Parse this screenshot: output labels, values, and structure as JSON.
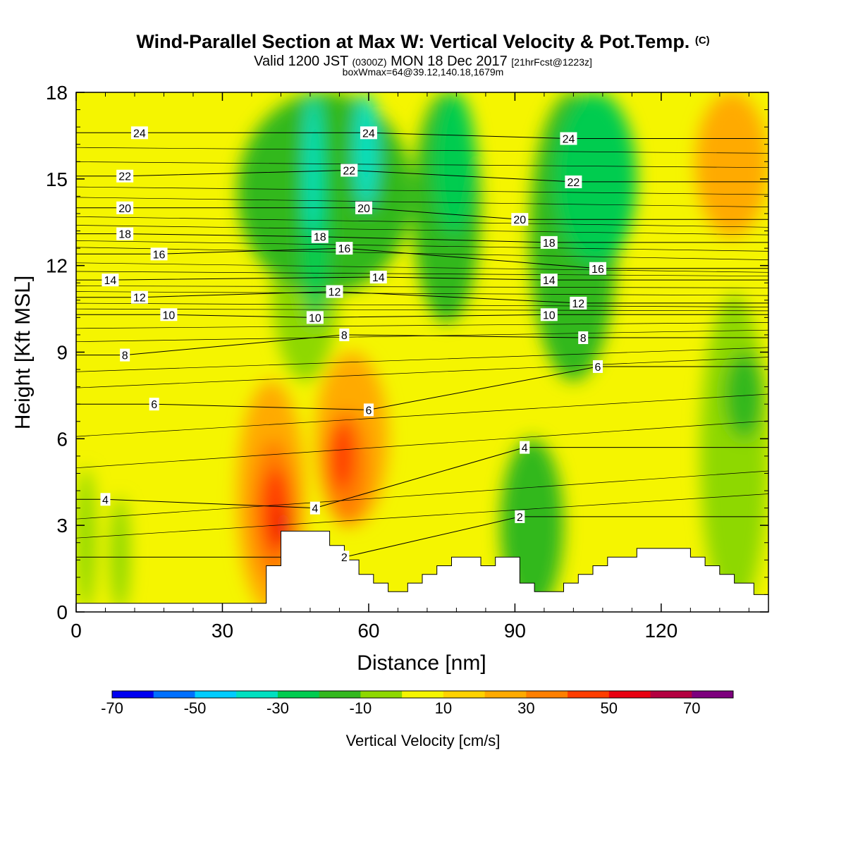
{
  "header": {
    "title_main": "Wind-Parallel Section at Max W: Vertical Velocity & Pot.Temp.",
    "title_copyright": "(C)",
    "subtitle_pre": "Valid 1200 JST",
    "subtitle_utc": "(0300Z)",
    "subtitle_mid": "MON 18 Dec 2017",
    "subtitle_fcst": "[21hrFcst@1223z]",
    "box_info": "boxWmax=64@39.12,140.18,1679m"
  },
  "chart_data": {
    "type": "heatmap",
    "xlabel": "Distance [nm]",
    "ylabel": "Height [Kft MSL]",
    "xlim": [
      0,
      142
    ],
    "ylim": [
      0,
      18
    ],
    "x_ticks": [
      "0",
      "30",
      "60",
      "90",
      "120"
    ],
    "y_ticks": [
      "0",
      "3",
      "6",
      "9",
      "12",
      "15",
      "18"
    ],
    "colorbar": {
      "label": "Vertical Velocity [cm/s]",
      "bins": [
        -70,
        -60,
        -50,
        -40,
        -30,
        -20,
        -10,
        0,
        10,
        20,
        30,
        40,
        50,
        60,
        70,
        80
      ],
      "colors": [
        "#0000f0",
        "#0070ff",
        "#00ccff",
        "#00e0c0",
        "#00cc50",
        "#33b81e",
        "#8ed800",
        "#f5f500",
        "#ffd200",
        "#ffaa00",
        "#ff7f00",
        "#ff3d00",
        "#e80010",
        "#b30040",
        "#7d007d"
      ],
      "tick_labels": [
        "-70",
        "-50",
        "-30",
        "-10",
        "10",
        "30",
        "50",
        "70"
      ]
    },
    "velocity_cells": [
      {
        "x": [
          0,
          4
        ],
        "y": [
          0,
          5
        ],
        "value": -5
      },
      {
        "x": [
          7,
          11
        ],
        "y": [
          0,
          4
        ],
        "value": -5
      },
      {
        "x": [
          33,
          47
        ],
        "y": [
          0,
          8
        ],
        "value": 25
      },
      {
        "x": [
          36,
          45
        ],
        "y": [
          1,
          6
        ],
        "value": 35
      },
      {
        "x": [
          38,
          44
        ],
        "y": [
          2,
          5
        ],
        "value": 45
      },
      {
        "x": [
          41,
          44
        ],
        "y": [
          2.3,
          3.6
        ],
        "value": 55
      },
      {
        "x": [
          49,
          64
        ],
        "y": [
          3,
          9
        ],
        "value": 25
      },
      {
        "x": [
          51,
          60
        ],
        "y": [
          3,
          7
        ],
        "value": 35
      },
      {
        "x": [
          52,
          57
        ],
        "y": [
          4.2,
          6.6
        ],
        "value": 45
      },
      {
        "x": [
          40,
          54
        ],
        "y": [
          8,
          15
        ],
        "value": -5
      },
      {
        "x": [
          33,
          69
        ],
        "y": [
          11,
          18
        ],
        "value": -15
      },
      {
        "x": [
          46,
          52
        ],
        "y": [
          10,
          18
        ],
        "value": -25
      },
      {
        "x": [
          47,
          50
        ],
        "y": [
          13,
          18
        ],
        "value": -35
      },
      {
        "x": [
          57,
          62
        ],
        "y": [
          14,
          18
        ],
        "value": -35
      },
      {
        "x": [
          69,
          83
        ],
        "y": [
          10,
          18
        ],
        "value": -15
      },
      {
        "x": [
          73,
          82
        ],
        "y": [
          13,
          18
        ],
        "value": -25
      },
      {
        "x": [
          87,
          100
        ],
        "y": [
          0,
          6
        ],
        "value": -15
      },
      {
        "x": [
          93,
          111
        ],
        "y": [
          8,
          18
        ],
        "value": -15
      },
      {
        "x": [
          98,
          115
        ],
        "y": [
          12,
          18
        ],
        "value": -25
      },
      {
        "x": [
          128,
          142
        ],
        "y": [
          0,
          11
        ],
        "value": -10
      },
      {
        "x": [
          133,
          141
        ],
        "y": [
          6,
          9
        ],
        "value": -15
      },
      {
        "x": [
          127,
          142
        ],
        "y": [
          13,
          18
        ],
        "value": 25
      }
    ],
    "theta_labels": [
      {
        "x": 13,
        "y": 16.6,
        "text": "24"
      },
      {
        "x": 60,
        "y": 16.6,
        "text": "24"
      },
      {
        "x": 101,
        "y": 16.4,
        "text": "24"
      },
      {
        "x": 10,
        "y": 15.1,
        "text": "22"
      },
      {
        "x": 56,
        "y": 15.3,
        "text": "22"
      },
      {
        "x": 102,
        "y": 14.9,
        "text": "22"
      },
      {
        "x": 10,
        "y": 14,
        "text": "20"
      },
      {
        "x": 59,
        "y": 14,
        "text": "20"
      },
      {
        "x": 91,
        "y": 13.6,
        "text": "20"
      },
      {
        "x": 10,
        "y": 13.1,
        "text": "18"
      },
      {
        "x": 50,
        "y": 13,
        "text": "18"
      },
      {
        "x": 97,
        "y": 12.8,
        "text": "18"
      },
      {
        "x": 17,
        "y": 12.4,
        "text": "16"
      },
      {
        "x": 55,
        "y": 12.6,
        "text": "16"
      },
      {
        "x": 107,
        "y": 11.9,
        "text": "16"
      },
      {
        "x": 7,
        "y": 11.5,
        "text": "14"
      },
      {
        "x": 62,
        "y": 11.6,
        "text": "14"
      },
      {
        "x": 97,
        "y": 11.5,
        "text": "14"
      },
      {
        "x": 13,
        "y": 10.9,
        "text": "12"
      },
      {
        "x": 53,
        "y": 11.1,
        "text": "12"
      },
      {
        "x": 103,
        "y": 10.7,
        "text": "12"
      },
      {
        "x": 19,
        "y": 10.3,
        "text": "10"
      },
      {
        "x": 49,
        "y": 10.2,
        "text": "10"
      },
      {
        "x": 97,
        "y": 10.3,
        "text": "10"
      },
      {
        "x": 10,
        "y": 8.9,
        "text": "8"
      },
      {
        "x": 55,
        "y": 9.6,
        "text": "8"
      },
      {
        "x": 104,
        "y": 9.5,
        "text": "8"
      },
      {
        "x": 16,
        "y": 7.2,
        "text": "6"
      },
      {
        "x": 60,
        "y": 7,
        "text": "6"
      },
      {
        "x": 107,
        "y": 8.5,
        "text": "6"
      },
      {
        "x": 6,
        "y": 3.9,
        "text": "4"
      },
      {
        "x": 49,
        "y": 3.6,
        "text": "4"
      },
      {
        "x": 92,
        "y": 5.7,
        "text": "4"
      },
      {
        "x": 55,
        "y": 1.9,
        "text": "2"
      },
      {
        "x": 91,
        "y": 3.3,
        "text": "2"
      }
    ],
    "terrain": [
      [
        0,
        0.3
      ],
      [
        39,
        0.3
      ],
      [
        39,
        1.6
      ],
      [
        42,
        1.6
      ],
      [
        42,
        2.8
      ],
      [
        52,
        2.8
      ],
      [
        52,
        2.3
      ],
      [
        55,
        2.3
      ],
      [
        55,
        1.8
      ],
      [
        58,
        1.8
      ],
      [
        58,
        1.3
      ],
      [
        61,
        1.3
      ],
      [
        61,
        1.0
      ],
      [
        64,
        1.0
      ],
      [
        64,
        0.7
      ],
      [
        68,
        0.7
      ],
      [
        68,
        1.0
      ],
      [
        71,
        1.0
      ],
      [
        71,
        1.3
      ],
      [
        74,
        1.3
      ],
      [
        74,
        1.6
      ],
      [
        77,
        1.6
      ],
      [
        77,
        1.9
      ],
      [
        83,
        1.9
      ],
      [
        83,
        1.6
      ],
      [
        86,
        1.6
      ],
      [
        86,
        1.9
      ],
      [
        91,
        1.9
      ],
      [
        91,
        1.0
      ],
      [
        94,
        1.0
      ],
      [
        94,
        0.7
      ],
      [
        100,
        0.7
      ],
      [
        100,
        1.0
      ],
      [
        103,
        1.0
      ],
      [
        103,
        1.3
      ],
      [
        106,
        1.3
      ],
      [
        106,
        1.6
      ],
      [
        109,
        1.6
      ],
      [
        109,
        1.9
      ],
      [
        115,
        1.9
      ],
      [
        115,
        2.2
      ],
      [
        126,
        2.2
      ],
      [
        126,
        1.9
      ],
      [
        129,
        1.9
      ],
      [
        129,
        1.6
      ],
      [
        132,
        1.6
      ],
      [
        132,
        1.3
      ],
      [
        135,
        1.3
      ],
      [
        135,
        1.0
      ],
      [
        139,
        1.0
      ],
      [
        139,
        0.6
      ],
      [
        142,
        0.6
      ],
      [
        142,
        0
      ]
    ]
  }
}
